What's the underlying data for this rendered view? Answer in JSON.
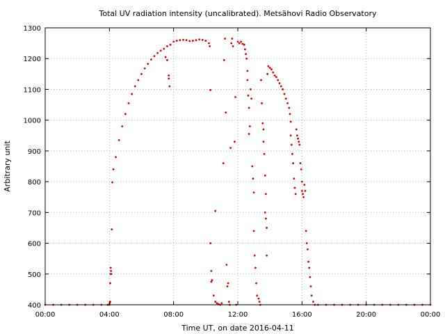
{
  "chart_data": {
    "type": "scatter",
    "title": "Total UV radiation intensity (uncalibrated). Metsähovi Radio Observatory",
    "xlabel": "Time UT, on date 2016-04-11",
    "ylabel": "Arbitrary unit",
    "xlim": [
      "00:00",
      "24:00"
    ],
    "x_unit": "hours UT",
    "ylim": [
      400,
      1300
    ],
    "grid": true,
    "legend": "none",
    "marker_color": "#e00000",
    "x_tick_labels": [
      "00:00",
      "04:00",
      "08:00",
      "12:00",
      "16:00",
      "20:00",
      "00:00"
    ],
    "x_tick_values": [
      0,
      4,
      8,
      12,
      16,
      20,
      24
    ],
    "y_ticks": [
      400,
      500,
      600,
      700,
      800,
      900,
      1000,
      1100,
      1200,
      1300
    ],
    "series": [
      {
        "points": [
          [
            0.0,
            400
          ],
          [
            0.5,
            400
          ],
          [
            1.0,
            400
          ],
          [
            1.5,
            400
          ],
          [
            2.0,
            400
          ],
          [
            2.5,
            400
          ],
          [
            3.0,
            400
          ],
          [
            3.5,
            400
          ],
          [
            3.9,
            400
          ],
          [
            4.0,
            400
          ],
          [
            4.02,
            405
          ],
          [
            4.05,
            410
          ],
          [
            4.05,
            470
          ],
          [
            4.07,
            500
          ],
          [
            4.08,
            520
          ],
          [
            4.1,
            510
          ],
          [
            4.12,
            500
          ],
          [
            4.15,
            645
          ],
          [
            4.18,
            798
          ],
          [
            4.25,
            840
          ],
          [
            4.4,
            880
          ],
          [
            4.6,
            935
          ],
          [
            4.8,
            980
          ],
          [
            5.0,
            1020
          ],
          [
            5.2,
            1055
          ],
          [
            5.4,
            1085
          ],
          [
            5.6,
            1110
          ],
          [
            5.8,
            1130
          ],
          [
            6.0,
            1150
          ],
          [
            6.2,
            1168
          ],
          [
            6.4,
            1183
          ],
          [
            6.6,
            1197
          ],
          [
            6.8,
            1208
          ],
          [
            7.0,
            1218
          ],
          [
            7.2,
            1226
          ],
          [
            7.4,
            1232
          ],
          [
            7.6,
            1240
          ],
          [
            7.5,
            1205
          ],
          [
            7.6,
            1195
          ],
          [
            7.7,
            1145
          ],
          [
            7.7,
            1135
          ],
          [
            7.75,
            1110
          ],
          [
            7.8,
            1245
          ],
          [
            8.0,
            1255
          ],
          [
            8.2,
            1258
          ],
          [
            8.4,
            1260
          ],
          [
            8.6,
            1261
          ],
          [
            8.8,
            1260
          ],
          [
            9.0,
            1257
          ],
          [
            9.2,
            1258
          ],
          [
            9.4,
            1260
          ],
          [
            9.6,
            1262
          ],
          [
            9.8,
            1261
          ],
          [
            10.0,
            1258
          ],
          [
            10.2,
            1250
          ],
          [
            10.25,
            1240
          ],
          [
            10.3,
            1098
          ],
          [
            10.3,
            600
          ],
          [
            10.35,
            510
          ],
          [
            10.4,
            480
          ],
          [
            10.35,
            475
          ],
          [
            10.5,
            430
          ],
          [
            10.6,
            705
          ],
          [
            10.6,
            410
          ],
          [
            10.7,
            405
          ],
          [
            10.8,
            402
          ],
          [
            10.9,
            400
          ],
          [
            11.0,
            405
          ],
          [
            11.1,
            860
          ],
          [
            11.15,
            1195
          ],
          [
            11.2,
            1265
          ],
          [
            11.25,
            1025
          ],
          [
            11.3,
            530
          ],
          [
            11.35,
            460
          ],
          [
            11.4,
            470
          ],
          [
            11.45,
            410
          ],
          [
            11.5,
            400
          ],
          [
            11.55,
            910
          ],
          [
            11.6,
            1250
          ],
          [
            11.65,
            1265
          ],
          [
            11.7,
            1240
          ],
          [
            11.8,
            930
          ],
          [
            11.85,
            1075
          ],
          [
            11.9,
            400
          ],
          [
            12.0,
            1255
          ],
          [
            12.1,
            1250
          ],
          [
            12.2,
            1255
          ],
          [
            12.3,
            1248
          ],
          [
            12.4,
            1245
          ],
          [
            12.45,
            1230
          ],
          [
            12.5,
            1215
          ],
          [
            12.55,
            1200
          ],
          [
            12.6,
            1160
          ],
          [
            12.6,
            1130
          ],
          [
            12.65,
            1080
          ],
          [
            12.7,
            1040
          ],
          [
            12.7,
            955
          ],
          [
            12.75,
            980
          ],
          [
            12.8,
            1100
          ],
          [
            12.85,
            1070
          ],
          [
            12.9,
            850
          ],
          [
            12.95,
            810
          ],
          [
            13.0,
            765
          ],
          [
            13.0,
            640
          ],
          [
            13.05,
            560
          ],
          [
            13.1,
            520
          ],
          [
            13.15,
            470
          ],
          [
            13.2,
            430
          ],
          [
            13.3,
            420
          ],
          [
            13.35,
            410
          ],
          [
            13.4,
            400
          ],
          [
            13.45,
            1130
          ],
          [
            13.5,
            1055
          ],
          [
            13.55,
            990
          ],
          [
            13.6,
            970
          ],
          [
            13.6,
            930
          ],
          [
            13.65,
            890
          ],
          [
            13.7,
            820
          ],
          [
            13.75,
            760
          ],
          [
            13.7,
            700
          ],
          [
            13.75,
            680
          ],
          [
            13.8,
            560
          ],
          [
            13.8,
            650
          ],
          [
            13.85,
            1150
          ],
          [
            13.9,
            1175
          ],
          [
            14.0,
            1170
          ],
          [
            14.1,
            1165
          ],
          [
            14.2,
            1155
          ],
          [
            14.3,
            1145
          ],
          [
            14.4,
            1140
          ],
          [
            14.5,
            1130
          ],
          [
            14.6,
            1120
          ],
          [
            14.7,
            1110
          ],
          [
            14.8,
            1100
          ],
          [
            14.9,
            1085
          ],
          [
            15.0,
            1070
          ],
          [
            15.1,
            1055
          ],
          [
            15.2,
            1040
          ],
          [
            15.25,
            1020
          ],
          [
            15.3,
            995
          ],
          [
            15.3,
            950
          ],
          [
            15.35,
            920
          ],
          [
            15.4,
            890
          ],
          [
            15.45,
            860
          ],
          [
            15.5,
            810
          ],
          [
            15.55,
            780
          ],
          [
            15.6,
            760
          ],
          [
            15.65,
            970
          ],
          [
            15.7,
            950
          ],
          [
            15.75,
            940
          ],
          [
            15.8,
            930
          ],
          [
            15.85,
            920
          ],
          [
            15.9,
            860
          ],
          [
            15.95,
            840
          ],
          [
            16.0,
            800
          ],
          [
            16.0,
            770
          ],
          [
            16.05,
            760
          ],
          [
            16.1,
            750
          ],
          [
            16.15,
            790
          ],
          [
            16.2,
            770
          ],
          [
            16.25,
            640
          ],
          [
            16.3,
            600
          ],
          [
            16.35,
            580
          ],
          [
            16.4,
            540
          ],
          [
            16.45,
            520
          ],
          [
            16.5,
            490
          ],
          [
            16.55,
            460
          ],
          [
            16.6,
            430
          ],
          [
            16.7,
            410
          ],
          [
            16.8,
            400
          ],
          [
            17.0,
            400
          ],
          [
            17.5,
            400
          ],
          [
            18.0,
            400
          ],
          [
            18.5,
            400
          ],
          [
            19.0,
            400
          ],
          [
            19.5,
            400
          ],
          [
            20.0,
            400
          ],
          [
            20.5,
            400
          ],
          [
            21.0,
            400
          ],
          [
            21.5,
            400
          ],
          [
            22.0,
            400
          ],
          [
            22.5,
            400
          ],
          [
            23.0,
            400
          ],
          [
            23.5,
            400
          ],
          [
            24.0,
            400
          ]
        ]
      }
    ]
  }
}
